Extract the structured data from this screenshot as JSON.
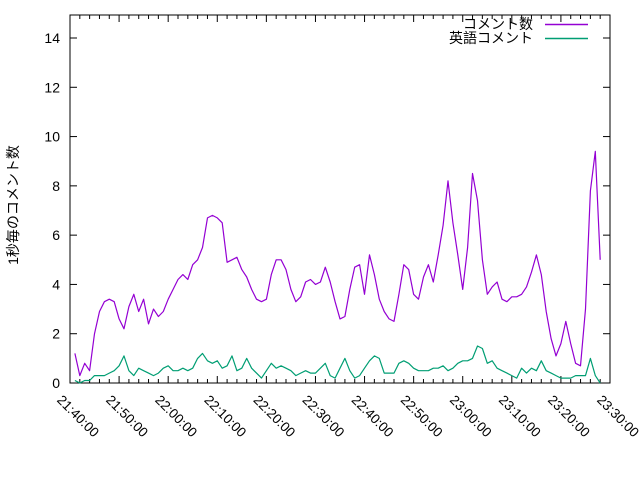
{
  "chart_data": {
    "type": "line",
    "title": "",
    "xlabel": "",
    "ylabel": "1秒毎のコメント数",
    "grid": false,
    "legend_position": "top-right-inside",
    "axis_color": "#000000",
    "background_color": "#ffffff",
    "x_axis": {
      "start": "21:40:00",
      "end": "23:30:00",
      "major_tick_minutes": 10,
      "minor_tick_minutes": 2,
      "total_minutes": 110,
      "tick_labels": [
        "21:40:00",
        "21:50:00",
        "22:00:00",
        "22:10:00",
        "22:20:00",
        "22:30:00",
        "22:40:00",
        "22:50:00",
        "23:00:00",
        "23:10:00",
        "23:20:00",
        "23:30:00"
      ]
    },
    "y_axis": {
      "min": 0,
      "max_tick": 14,
      "max_displayed": 14.93,
      "ticks": [
        0,
        2,
        4,
        6,
        8,
        10,
        12,
        14
      ],
      "tick_labels": [
        "0",
        "2",
        "4",
        "6",
        "8",
        "10",
        "12",
        "14"
      ]
    },
    "sampling": {
      "start_offset_minutes": 1,
      "interval_minutes": 1
    },
    "series": [
      {
        "name": "コメント数",
        "color": "#9400D3",
        "values": [
          1.2,
          0.3,
          0.8,
          0.5,
          2.0,
          2.9,
          3.3,
          3.4,
          3.3,
          2.6,
          2.2,
          3.1,
          3.6,
          2.9,
          3.4,
          2.4,
          3.0,
          2.7,
          2.9,
          3.4,
          3.8,
          4.2,
          4.4,
          4.2,
          4.8,
          5.0,
          5.5,
          6.7,
          6.8,
          6.7,
          6.5,
          4.9,
          5.0,
          5.1,
          4.6,
          4.3,
          3.8,
          3.4,
          3.3,
          3.4,
          4.4,
          5.0,
          5.0,
          4.6,
          3.8,
          3.3,
          3.5,
          4.1,
          4.2,
          4.0,
          4.1,
          4.7,
          4.1,
          3.3,
          2.6,
          2.7,
          3.8,
          4.7,
          4.8,
          3.6,
          5.2,
          4.4,
          3.4,
          2.9,
          2.6,
          2.5,
          3.6,
          4.8,
          4.6,
          3.6,
          3.4,
          4.3,
          4.8,
          4.1,
          5.2,
          6.4,
          8.2,
          6.5,
          5.2,
          3.8,
          5.5,
          8.5,
          7.4,
          5.0,
          3.6,
          3.9,
          4.1,
          3.4,
          3.3,
          3.5,
          3.5,
          3.6,
          3.9,
          4.5,
          5.2,
          4.4,
          2.9,
          1.8,
          1.1,
          1.6,
          2.5,
          1.6,
          0.8,
          0.7,
          3.0,
          7.8,
          9.4,
          5.0
        ]
      },
      {
        "name": "英語コメント",
        "color": "#009E73",
        "values": [
          0.1,
          0.0,
          0.1,
          0.1,
          0.3,
          0.3,
          0.3,
          0.4,
          0.5,
          0.7,
          1.1,
          0.5,
          0.3,
          0.6,
          0.5,
          0.4,
          0.3,
          0.4,
          0.6,
          0.7,
          0.5,
          0.5,
          0.6,
          0.5,
          0.6,
          1.0,
          1.2,
          0.9,
          0.8,
          0.9,
          0.6,
          0.7,
          1.1,
          0.5,
          0.6,
          1.0,
          0.6,
          0.4,
          0.2,
          0.5,
          0.8,
          0.6,
          0.7,
          0.6,
          0.5,
          0.3,
          0.4,
          0.5,
          0.4,
          0.4,
          0.6,
          0.8,
          0.3,
          0.2,
          0.6,
          1.0,
          0.5,
          0.2,
          0.3,
          0.6,
          0.9,
          1.1,
          1.0,
          0.4,
          0.4,
          0.4,
          0.8,
          0.9,
          0.8,
          0.6,
          0.5,
          0.5,
          0.5,
          0.6,
          0.6,
          0.7,
          0.5,
          0.6,
          0.8,
          0.9,
          0.9,
          1.0,
          1.5,
          1.4,
          0.8,
          0.9,
          0.6,
          0.5,
          0.4,
          0.3,
          0.2,
          0.6,
          0.4,
          0.6,
          0.5,
          0.9,
          0.5,
          0.4,
          0.3,
          0.2,
          0.2,
          0.2,
          0.3,
          0.3,
          0.3,
          1.0,
          0.3,
          0.0
        ]
      }
    ]
  }
}
